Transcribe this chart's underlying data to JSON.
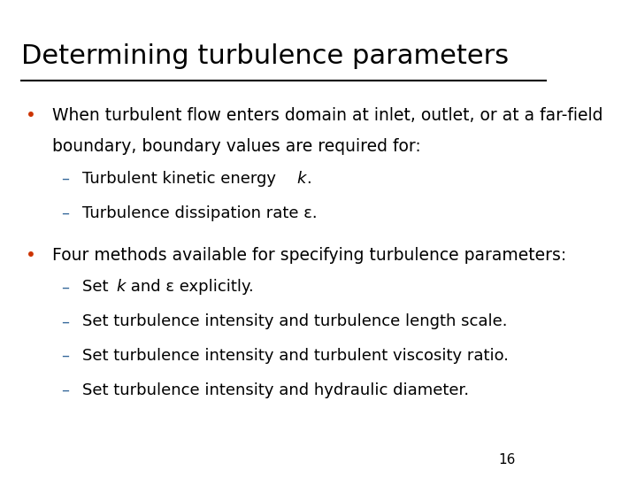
{
  "title": "Determining turbulence parameters",
  "background_color": "#ffffff",
  "title_color": "#000000",
  "title_fontsize": 22,
  "bullet_color": "#cc3300",
  "dash_color": "#336699",
  "text_color": "#000000",
  "page_number": "16",
  "font_size_bullet": 13.5,
  "font_size_sub": 13.0,
  "bullets": [
    {
      "lines": [
        "When turbulent flow enters domain at inlet, outlet, or at a far-field",
        "boundary, boundary values are required for:"
      ],
      "sub_items": [
        [
          {
            "text": "Turbulent kinetic energy ",
            "style": "normal"
          },
          {
            "text": "k",
            "style": "italic"
          },
          {
            "text": ".",
            "style": "normal"
          }
        ],
        [
          {
            "text": "Turbulence dissipation rate ε.",
            "style": "normal"
          }
        ]
      ]
    },
    {
      "lines": [
        "Four methods available for specifying turbulence parameters:"
      ],
      "sub_items": [
        [
          {
            "text": "Set ",
            "style": "normal"
          },
          {
            "text": "k",
            "style": "italic"
          },
          {
            "text": " and ε explicitly.",
            "style": "normal"
          }
        ],
        [
          {
            "text": "Set turbulence intensity and turbulence length scale.",
            "style": "normal"
          }
        ],
        [
          {
            "text": "Set turbulence intensity and turbulent viscosity ratio.",
            "style": "normal"
          }
        ],
        [
          {
            "text": "Set turbulence intensity and hydraulic diameter.",
            "style": "normal"
          }
        ]
      ]
    }
  ]
}
